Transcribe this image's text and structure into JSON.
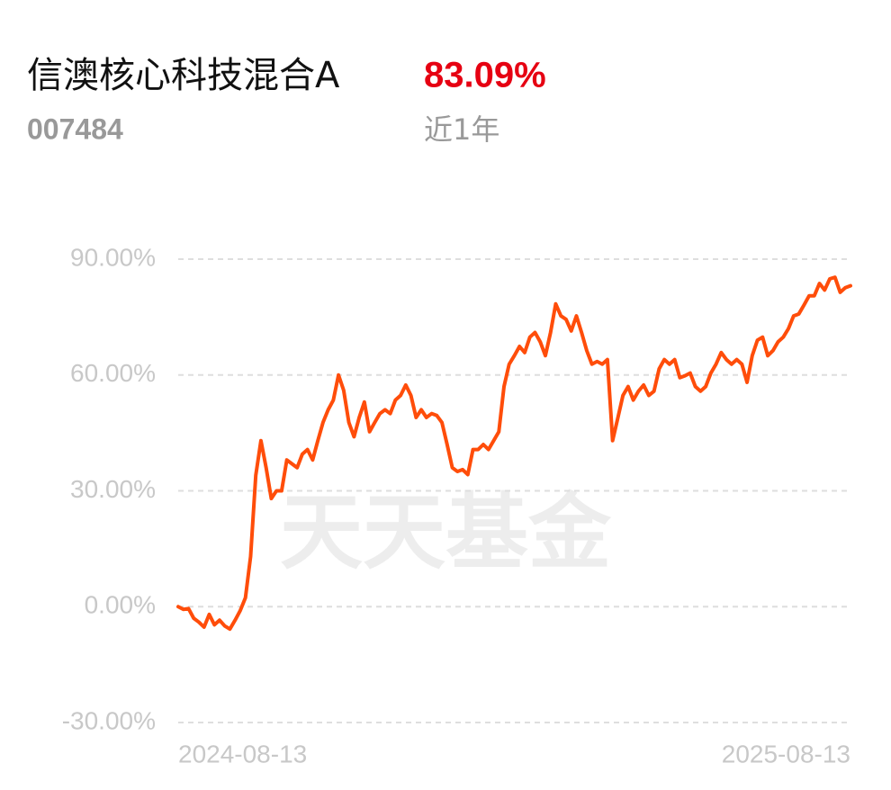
{
  "header": {
    "title": "信澳核心科技混合A",
    "return": "83.09%",
    "code": "007484",
    "period": "近1年"
  },
  "chart_data": {
    "type": "line",
    "watermark": "天天基金",
    "categories": [
      "2024-08-13",
      null,
      null,
      null,
      null,
      null,
      null,
      null,
      null,
      null,
      null,
      null,
      null,
      null,
      null,
      null,
      null,
      null,
      null,
      null,
      null,
      null,
      null,
      null,
      null,
      null,
      null,
      null,
      null,
      null,
      null,
      null,
      null,
      null,
      null,
      null,
      null,
      null,
      null,
      null,
      null,
      null,
      null,
      null,
      null,
      null,
      null,
      null,
      null,
      null,
      null,
      null,
      null,
      null,
      null,
      null,
      null,
      null,
      null,
      null,
      null,
      null,
      null,
      null,
      null,
      null,
      null,
      null,
      null,
      null,
      null,
      null,
      null,
      null,
      null,
      null,
      null,
      null,
      null,
      null,
      null,
      null,
      null,
      null,
      null,
      null,
      null,
      null,
      null,
      null,
      null,
      null,
      null,
      null,
      null,
      null,
      null,
      null,
      null,
      null,
      null,
      null,
      null,
      null,
      null,
      null,
      null,
      null,
      null,
      null,
      null,
      null,
      null,
      null,
      null,
      null,
      null,
      null,
      null,
      null,
      null,
      null,
      null,
      null,
      null,
      null,
      null,
      null,
      null,
      null,
      "2025-08-13"
    ],
    "series": [
      {
        "color": "#ff4d0a",
        "values": [
          0,
          -0.7,
          -0.5,
          -3,
          -4,
          -5.3,
          -2,
          -4.7,
          -3.5,
          -5,
          -5.8,
          -3.5,
          -1,
          2.3,
          13,
          34,
          43,
          36,
          28,
          30,
          30,
          38,
          37,
          36,
          39.5,
          40.7,
          38,
          43,
          47.7,
          51,
          53.5,
          60,
          56,
          47.7,
          44,
          49,
          53,
          45.3,
          47.7,
          50,
          51,
          50,
          53.5,
          54.7,
          57.4,
          54.7,
          49,
          51,
          49,
          50,
          49.5,
          47.7,
          42,
          36,
          35,
          35.5,
          34.2,
          40.7,
          40.7,
          42,
          40.7,
          43,
          45.3,
          57,
          62.8,
          65,
          67.4,
          65.8,
          69.8,
          71,
          68.6,
          65,
          71,
          78.4,
          75.3,
          74.4,
          71.4,
          75.3,
          71,
          66.3,
          62.8,
          63.5,
          62.8,
          64,
          43,
          48.8,
          54.7,
          57,
          53.5,
          55.8,
          57.4,
          54.7,
          55.8,
          61.6,
          64,
          62.8,
          64,
          59.3,
          59.8,
          60.5,
          57,
          55.8,
          57,
          60.5,
          62.8,
          65.8,
          64,
          62.8,
          64,
          62.8,
          58.1,
          65,
          69,
          69.8,
          65,
          66.3,
          68.6,
          69.8,
          72,
          75.3,
          75.8,
          78.1,
          80.5,
          80.5,
          83.7,
          82,
          84.9,
          85.3,
          81.4,
          82.6,
          83.1
        ]
      }
    ],
    "ylim": [
      -30,
      90
    ],
    "yticks": [
      {
        "value": -30,
        "label": "-30.00%"
      },
      {
        "value": 0,
        "label": "0.00%"
      },
      {
        "value": 30,
        "label": "30.00%"
      },
      {
        "value": 60,
        "label": "60.00%"
      },
      {
        "value": 90,
        "label": "90.00%"
      }
    ],
    "grid": true
  }
}
